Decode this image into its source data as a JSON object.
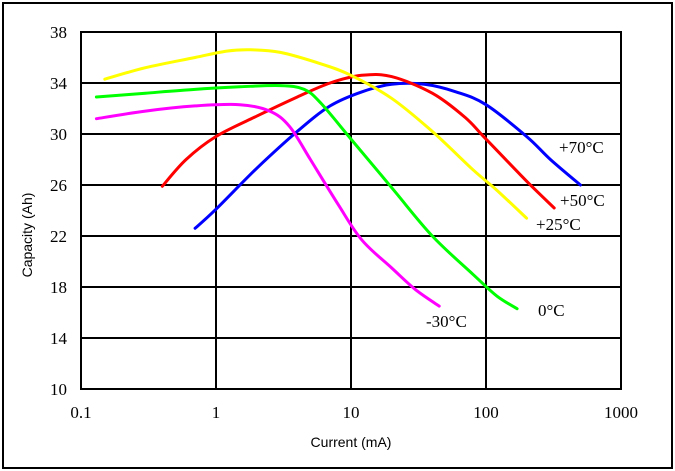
{
  "chart_data": {
    "type": "line",
    "title": "",
    "xlabel": "Current (mA)",
    "ylabel": "Capacity (Ah)",
    "x_scale": "log",
    "xlim": [
      0.1,
      1000
    ],
    "ylim": [
      10,
      38
    ],
    "x_ticks": [
      "0.1",
      "1",
      "10",
      "100",
      "1000"
    ],
    "y_ticks": [
      "10",
      "14",
      "18",
      "22",
      "26",
      "30",
      "34",
      "38"
    ],
    "grid": true,
    "legend": "inline labels",
    "series": [
      {
        "name": "+70°C",
        "color": "#0000ff",
        "points": [
          [
            0.7,
            22.6
          ],
          [
            1.0,
            24.1
          ],
          [
            2.0,
            27.3
          ],
          [
            4.0,
            30.2
          ],
          [
            7.0,
            32.2
          ],
          [
            12.0,
            33.3
          ],
          [
            20.0,
            33.9
          ],
          [
            35.0,
            33.9
          ],
          [
            60.0,
            33.3
          ],
          [
            100.0,
            32.3
          ],
          [
            200.0,
            29.8
          ],
          [
            300.0,
            28.0
          ],
          [
            500.0,
            26.0
          ]
        ]
      },
      {
        "name": "+50°C",
        "color": "#ff0000",
        "points": [
          [
            0.4,
            25.9
          ],
          [
            0.6,
            28.0
          ],
          [
            1.0,
            29.8
          ],
          [
            2.0,
            31.4
          ],
          [
            4.0,
            32.9
          ],
          [
            7.0,
            34.0
          ],
          [
            12.0,
            34.6
          ],
          [
            20.0,
            34.5
          ],
          [
            40.0,
            33.2
          ],
          [
            70.0,
            31.3
          ],
          [
            100.0,
            29.6
          ],
          [
            200.0,
            26.3
          ],
          [
            320.0,
            24.2
          ]
        ]
      },
      {
        "name": "+25°C",
        "color": "#ffff00",
        "points": [
          [
            0.15,
            34.3
          ],
          [
            0.3,
            35.2
          ],
          [
            0.7,
            36.0
          ],
          [
            1.2,
            36.5
          ],
          [
            1.8,
            36.6
          ],
          [
            3.0,
            36.4
          ],
          [
            6.0,
            35.5
          ],
          [
            10.0,
            34.6
          ],
          [
            20.0,
            32.8
          ],
          [
            40.0,
            30.2
          ],
          [
            80.0,
            27.2
          ],
          [
            120.0,
            25.6
          ],
          [
            200.0,
            23.4
          ]
        ]
      },
      {
        "name": "0°C",
        "color": "#00ff00",
        "points": [
          [
            0.13,
            32.9
          ],
          [
            0.3,
            33.2
          ],
          [
            0.7,
            33.5
          ],
          [
            1.5,
            33.7
          ],
          [
            3.0,
            33.8
          ],
          [
            4.5,
            33.5
          ],
          [
            6.0,
            32.4
          ],
          [
            10.0,
            29.6
          ],
          [
            20.0,
            25.8
          ],
          [
            40.0,
            22.0
          ],
          [
            80.0,
            19.0
          ],
          [
            120.0,
            17.3
          ],
          [
            170.0,
            16.3
          ]
        ]
      },
      {
        "name": "-30°C",
        "color": "#ff00ff",
        "points": [
          [
            0.13,
            31.2
          ],
          [
            0.3,
            31.8
          ],
          [
            0.7,
            32.2
          ],
          [
            1.5,
            32.3
          ],
          [
            2.5,
            31.8
          ],
          [
            3.5,
            30.6
          ],
          [
            5.0,
            28.0
          ],
          [
            8.0,
            24.5
          ],
          [
            12.0,
            21.7
          ],
          [
            20.0,
            19.5
          ],
          [
            30.0,
            17.8
          ],
          [
            45.0,
            16.5
          ]
        ]
      }
    ],
    "series_labels": [
      "+70°C",
      "+50°C",
      "+25°C",
      "0°C",
      "-30°C"
    ]
  }
}
